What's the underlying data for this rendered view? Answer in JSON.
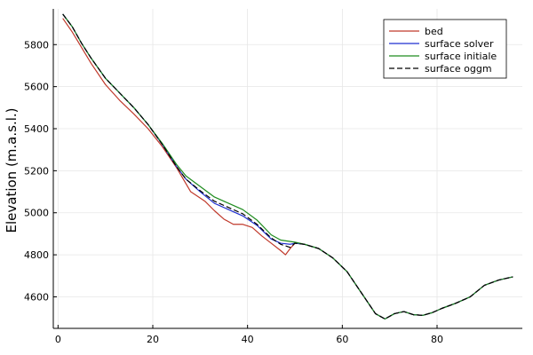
{
  "chart_data": {
    "type": "line",
    "title": "",
    "xlabel": "",
    "ylabel": "Elevation (m.a.s.l.)",
    "xlim": [
      -1,
      98
    ],
    "ylim": [
      4450,
      5970
    ],
    "xticks": [
      0,
      20,
      40,
      60,
      80
    ],
    "yticks": [
      4600,
      4800,
      5000,
      5200,
      5400,
      5600,
      5800
    ],
    "xtick_labels": [
      "0",
      "20",
      "40",
      "60",
      "80"
    ],
    "ytick_labels": [
      "4600",
      "4800",
      "5000",
      "5200",
      "5400",
      "5600",
      "5800"
    ],
    "grid": true,
    "legend_position": "top-right",
    "series": [
      {
        "name": "bed",
        "color": "#c0392b",
        "dash": "solid",
        "x": [
          1,
          3,
          5,
          7,
          10,
          13,
          16,
          19,
          22,
          25,
          28,
          30,
          31,
          33,
          35,
          37,
          39,
          41,
          43,
          45,
          47,
          48,
          49,
          50,
          52,
          55,
          58,
          61,
          64,
          67,
          69,
          71,
          73,
          75,
          77,
          79,
          81,
          84,
          87,
          90,
          93,
          96
        ],
        "y": [
          5925,
          5860,
          5785,
          5710,
          5610,
          5535,
          5470,
          5400,
          5315,
          5215,
          5100,
          5070,
          5055,
          5010,
          4970,
          4945,
          4945,
          4930,
          4890,
          4855,
          4820,
          4800,
          4830,
          4855,
          4850,
          4830,
          4785,
          4720,
          4620,
          4520,
          4495,
          4520,
          4530,
          4515,
          4512,
          4525,
          4545,
          4570,
          4600,
          4655,
          4680,
          4695
        ]
      },
      {
        "name": "surface solver",
        "color": "#1f2fd0",
        "dash": "solid",
        "x": [
          1,
          3,
          5,
          7,
          10,
          13,
          16,
          19,
          22,
          25,
          27,
          30,
          33,
          36,
          39,
          42,
          45,
          47,
          49,
          50,
          52,
          55,
          58,
          61,
          64,
          67,
          69,
          71,
          73,
          75,
          77,
          79,
          81,
          84,
          87,
          90,
          93,
          96
        ],
        "y": [
          5945,
          5885,
          5805,
          5735,
          5640,
          5570,
          5500,
          5420,
          5325,
          5220,
          5160,
          5100,
          5045,
          5015,
          4985,
          4940,
          4875,
          4855,
          4850,
          4855,
          4850,
          4830,
          4785,
          4720,
          4620,
          4520,
          4495,
          4520,
          4530,
          4515,
          4512,
          4525,
          4545,
          4570,
          4600,
          4655,
          4680,
          4695
        ]
      },
      {
        "name": "surface initiale",
        "color": "#1e8c1e",
        "dash": "solid",
        "x": [
          1,
          3,
          5,
          7,
          10,
          13,
          16,
          19,
          22,
          25,
          27,
          30,
          33,
          36,
          39,
          42,
          45,
          47,
          50,
          52,
          55,
          58,
          61,
          64,
          67,
          69,
          71,
          73,
          75,
          77,
          79,
          81,
          84,
          87,
          90,
          93,
          96
        ],
        "y": [
          5945,
          5885,
          5805,
          5735,
          5640,
          5570,
          5500,
          5420,
          5330,
          5230,
          5175,
          5125,
          5075,
          5045,
          5015,
          4965,
          4895,
          4870,
          4860,
          4850,
          4830,
          4785,
          4720,
          4620,
          4520,
          4495,
          4520,
          4530,
          4515,
          4512,
          4525,
          4545,
          4570,
          4600,
          4655,
          4680,
          4695
        ]
      },
      {
        "name": "surface oggm",
        "color": "#000000",
        "dash": "dashed",
        "x": [
          1,
          3,
          5,
          7,
          10,
          13,
          16,
          19,
          22,
          25,
          27,
          30,
          33,
          36,
          39,
          42,
          45,
          47,
          49,
          50,
          52,
          55,
          58,
          61,
          64,
          67,
          69,
          71,
          73,
          75,
          77,
          79,
          81,
          84,
          87,
          90,
          93,
          96
        ],
        "y": [
          5945,
          5885,
          5805,
          5735,
          5640,
          5570,
          5500,
          5420,
          5325,
          5220,
          5160,
          5105,
          5055,
          5025,
          4995,
          4945,
          4880,
          4850,
          4835,
          4855,
          4850,
          4830,
          4785,
          4720,
          4620,
          4520,
          4495,
          4520,
          4530,
          4515,
          4512,
          4525,
          4545,
          4570,
          4600,
          4655,
          4680,
          4695
        ]
      }
    ]
  }
}
